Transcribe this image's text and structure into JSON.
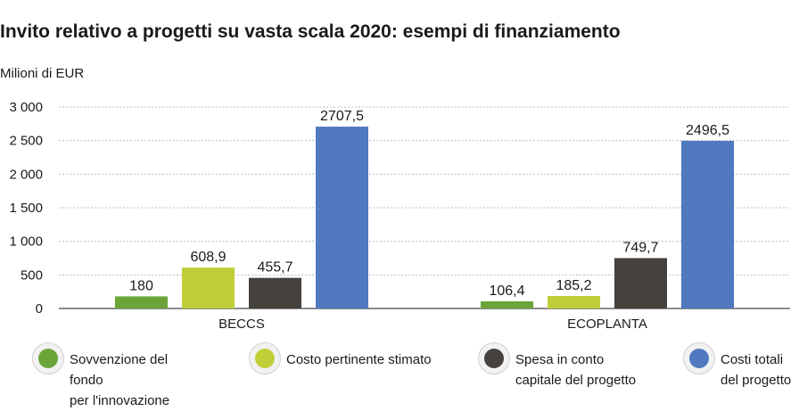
{
  "title": "Invito relativo a progetti su vasta scala 2020: esempi di finanziamento",
  "unit_label": "Milioni di EUR",
  "chart_data": {
    "type": "bar",
    "categories": [
      "BECCS",
      "ECOPLANTA"
    ],
    "series": [
      {
        "name": "Sovvenzione del fondo\nper l'innovazione",
        "color": "#6ba539",
        "values": [
          180,
          106.4
        ],
        "labels": [
          "180",
          "106,4"
        ]
      },
      {
        "name": "Costo pertinente stimato",
        "color": "#c0cf38",
        "values": [
          608.9,
          185.2
        ],
        "labels": [
          "608,9",
          "185,2"
        ]
      },
      {
        "name": "Spesa in conto\ncapitale del progetto",
        "color": "#45413c",
        "values": [
          455.7,
          749.7
        ],
        "labels": [
          "455,7",
          "749,7"
        ]
      },
      {
        "name": "Costi totali\ndel progetto",
        "color": "#5079c0",
        "values": [
          2707.5,
          2496.5
        ],
        "labels": [
          "2707,5",
          "2496,5"
        ]
      }
    ],
    "y_ticks": [
      0,
      500,
      1000,
      1500,
      2000,
      2500,
      3000
    ],
    "y_tick_labels": [
      "0",
      "500",
      "1 000",
      "1 500",
      "2 000",
      "2 500",
      "3 000"
    ],
    "ylim": [
      0,
      3000
    ],
    "grid": true,
    "legend_position": "bottom"
  }
}
